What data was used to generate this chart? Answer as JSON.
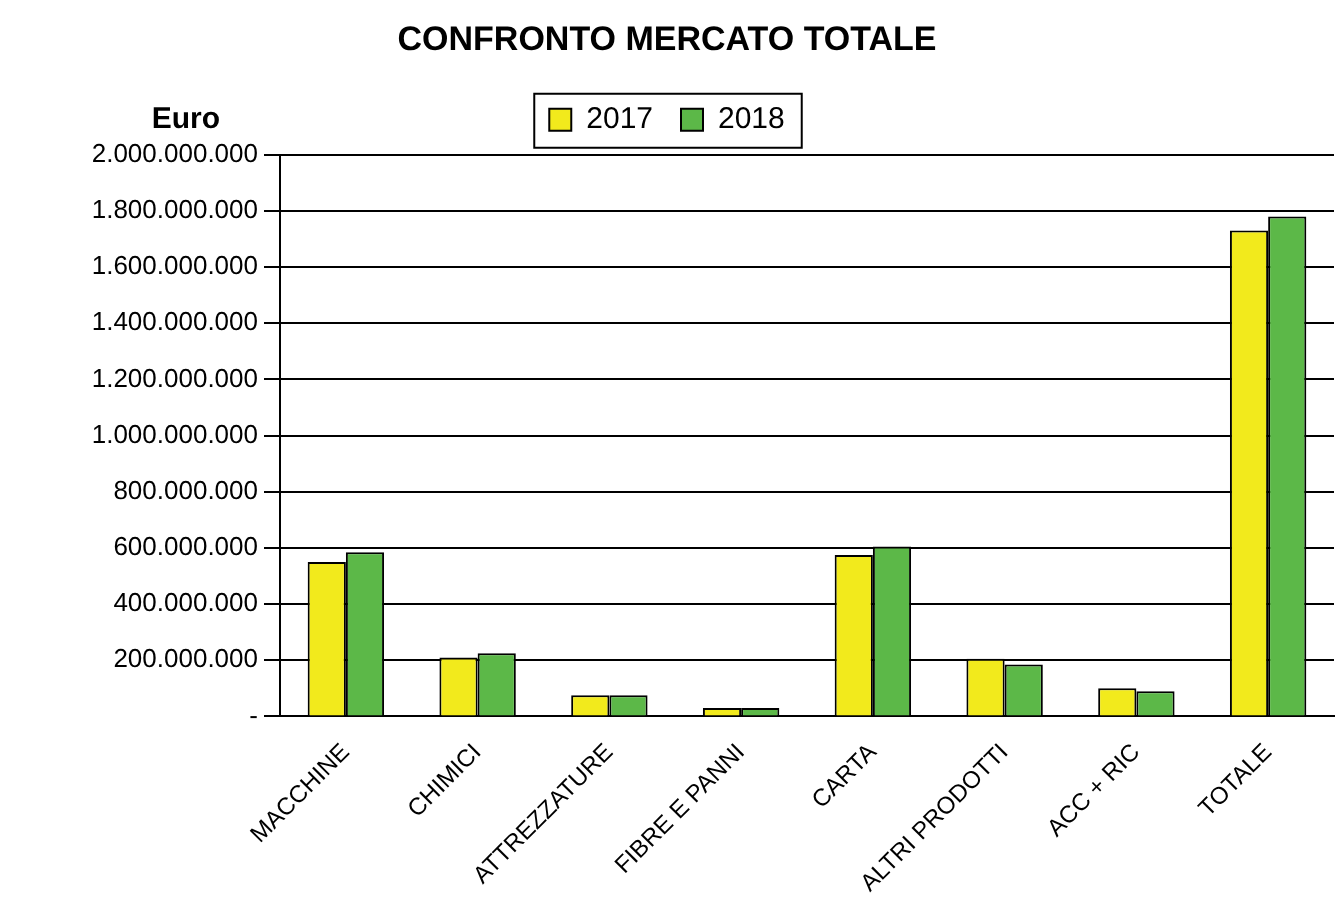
{
  "chart_data": {
    "type": "bar",
    "title": "CONFRONTO MERCATO TOTALE",
    "ylabel": "Euro",
    "categories": [
      "MACCHINE",
      "CHIMICI",
      "ATTREZZATURE",
      "FIBRE E PANNI",
      "CARTA",
      "ALTRI PRODOTTI",
      "ACC + RIC",
      "TOTALE"
    ],
    "series": [
      {
        "name": "2017",
        "color": "#f2ea1c",
        "values": [
          550000000,
          210000000,
          75000000,
          30000000,
          575000000,
          205000000,
          100000000,
          1730000000
        ]
      },
      {
        "name": "2018",
        "color": "#5cb848",
        "values": [
          585000000,
          225000000,
          75000000,
          30000000,
          605000000,
          185000000,
          90000000,
          1780000000
        ]
      }
    ],
    "ylim": [
      0,
      2000000000
    ],
    "yticks": [
      {
        "value": 0,
        "label": "-"
      },
      {
        "value": 200000000,
        "label": "200.000.000"
      },
      {
        "value": 400000000,
        "label": "400.000.000"
      },
      {
        "value": 600000000,
        "label": "600.000.000"
      },
      {
        "value": 800000000,
        "label": "800.000.000"
      },
      {
        "value": 1000000000,
        "label": "1.000.000.000"
      },
      {
        "value": 1200000000,
        "label": "1.200.000.000"
      },
      {
        "value": 1400000000,
        "label": "1.400.000.000"
      },
      {
        "value": 1600000000,
        "label": "1.600.000.000"
      },
      {
        "value": 1800000000,
        "label": "1.800.000.000"
      },
      {
        "value": 2000000000,
        "label": "2.000.000.000"
      }
    ],
    "grid": "y",
    "legend": "top"
  }
}
